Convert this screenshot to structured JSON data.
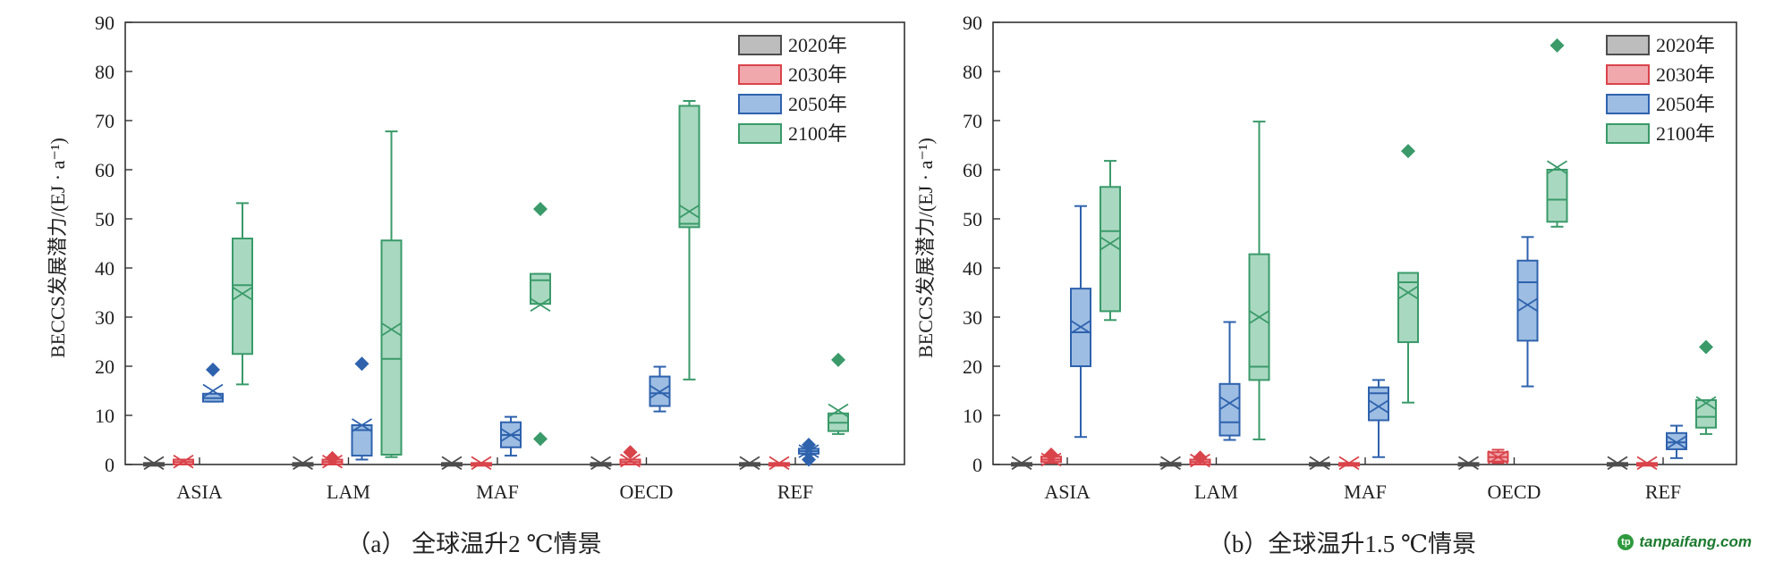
{
  "chart_data": [
    {
      "type": "box",
      "title": "（a） 全球温升2 ℃情景",
      "xlabel": "",
      "ylabel": "BECCS发展潜力/(EJ · a⁻¹)",
      "ylim": [
        0,
        90
      ],
      "yticks": [
        0,
        10,
        20,
        30,
        40,
        50,
        60,
        70,
        80,
        90
      ],
      "grid": false,
      "legend_position": "top-right",
      "categories": [
        "ASIA",
        "LAM",
        "MAF",
        "OECD",
        "REF"
      ],
      "series": [
        {
          "name": "2020年",
          "color": "#4d4d4d",
          "fill": "#bdbdbd",
          "boxes": [
            {
              "min": 0,
              "q1": 0,
              "median": 0,
              "q3": 0.3,
              "max": 0.3,
              "mean": 0.3,
              "outliers": []
            },
            {
              "min": 0,
              "q1": 0,
              "median": 0,
              "q3": 0.3,
              "max": 0.3,
              "mean": 0.3,
              "outliers": []
            },
            {
              "min": 0,
              "q1": 0,
              "median": 0,
              "q3": 0.3,
              "max": 0.3,
              "mean": 0.3,
              "outliers": []
            },
            {
              "min": 0,
              "q1": 0,
              "median": 0,
              "q3": 0.3,
              "max": 0.3,
              "mean": 0.3,
              "outliers": []
            },
            {
              "min": 0,
              "q1": 0,
              "median": 0,
              "q3": 0.3,
              "max": 0.3,
              "mean": 0.3,
              "outliers": []
            }
          ]
        },
        {
          "name": "2030年",
          "color": "#d9434a",
          "fill": "#f0a8ad",
          "boxes": [
            {
              "min": 0,
              "q1": 0,
              "median": 0.5,
              "q3": 1.0,
              "max": 1.0,
              "mean": 0.6,
              "outliers": []
            },
            {
              "min": 0,
              "q1": 0,
              "median": 0.5,
              "q3": 1.0,
              "max": 1.0,
              "mean": 0.6,
              "outliers": [
                1.3
              ]
            },
            {
              "min": 0,
              "q1": 0,
              "median": 0,
              "q3": 0.3,
              "max": 0.3,
              "mean": 0.3,
              "outliers": []
            },
            {
              "min": 0,
              "q1": 0,
              "median": 0.5,
              "q3": 1.0,
              "max": 1.0,
              "mean": 0.8,
              "outliers": [
                2.5
              ]
            },
            {
              "min": 0,
              "q1": 0,
              "median": 0,
              "q3": 0.3,
              "max": 0.3,
              "mean": 0.3,
              "outliers": []
            }
          ]
        },
        {
          "name": "2050年",
          "color": "#2e62ad",
          "fill": "#9dbde3",
          "boxes": [
            {
              "min": 12.8,
              "q1": 12.8,
              "median": 13.5,
              "q3": 14.4,
              "max": 14.4,
              "mean": 15.0,
              "outliers": [
                19.3
              ]
            },
            {
              "min": 1.0,
              "q1": 1.8,
              "median": 7.0,
              "q3": 8.0,
              "max": 8.0,
              "mean": 8.0,
              "outliers": [
                20.5
              ]
            },
            {
              "min": 1.8,
              "q1": 3.5,
              "median": 6.0,
              "q3": 8.6,
              "max": 9.7,
              "mean": 6.0,
              "outliers": []
            },
            {
              "min": 10.8,
              "q1": 11.9,
              "median": 14.5,
              "q3": 17.9,
              "max": 19.9,
              "mean": 14.8,
              "outliers": []
            },
            {
              "min": 2.0,
              "q1": 2.2,
              "median": 2.7,
              "q3": 3.2,
              "max": 3.3,
              "mean": 2.7,
              "outliers": [
                1.0,
                4.0
              ]
            }
          ]
        },
        {
          "name": "2100年",
          "color": "#3a9a6a",
          "fill": "#a9d8c0",
          "boxes": [
            {
              "min": 16.3,
              "q1": 22.5,
              "median": 36.5,
              "q3": 46.0,
              "max": 53.2,
              "mean": 34.8,
              "outliers": []
            },
            {
              "min": 1.5,
              "q1": 2.0,
              "median": 21.5,
              "q3": 45.6,
              "max": 67.8,
              "mean": 27.5,
              "outliers": []
            },
            {
              "min": 32.7,
              "q1": 32.7,
              "median": 37.5,
              "q3": 38.8,
              "max": 38.8,
              "mean": 32.5,
              "outliers": [
                52.0,
                5.2
              ]
            },
            {
              "min": 17.3,
              "q1": 48.3,
              "median": 49.0,
              "q3": 73.0,
              "max": 74.0,
              "mean": 51.5,
              "outliers": []
            },
            {
              "min": 6.2,
              "q1": 6.8,
              "median": 8.5,
              "q3": 10.4,
              "max": 10.4,
              "mean": 11.0,
              "outliers": [
                21.3
              ]
            }
          ]
        }
      ]
    },
    {
      "type": "box",
      "title": "（b）全球温升1.5 ℃情景",
      "xlabel": "",
      "ylabel": "BECCS发展潜力/(EJ · a⁻¹)",
      "ylim": [
        0,
        90
      ],
      "yticks": [
        0,
        10,
        20,
        30,
        40,
        50,
        60,
        70,
        80,
        90
      ],
      "grid": false,
      "legend_position": "top-right",
      "categories": [
        "ASIA",
        "LAM",
        "MAF",
        "OECD",
        "REF"
      ],
      "series": [
        {
          "name": "2020年",
          "color": "#4d4d4d",
          "fill": "#bdbdbd",
          "boxes": [
            {
              "min": 0,
              "q1": 0,
              "median": 0,
              "q3": 0.3,
              "max": 0.3,
              "mean": 0.3,
              "outliers": []
            },
            {
              "min": 0,
              "q1": 0,
              "median": 0,
              "q3": 0.3,
              "max": 0.3,
              "mean": 0.3,
              "outliers": []
            },
            {
              "min": 0,
              "q1": 0,
              "median": 0,
              "q3": 0.3,
              "max": 0.3,
              "mean": 0.3,
              "outliers": []
            },
            {
              "min": 0,
              "q1": 0,
              "median": 0,
              "q3": 0.3,
              "max": 0.3,
              "mean": 0.3,
              "outliers": []
            },
            {
              "min": 0,
              "q1": 0,
              "median": 0,
              "q3": 0.3,
              "max": 0.3,
              "mean": 0.3,
              "outliers": []
            }
          ]
        },
        {
          "name": "2030年",
          "color": "#d9434a",
          "fill": "#f0a8ad",
          "boxes": [
            {
              "min": 0.3,
              "q1": 0.5,
              "median": 1.0,
              "q3": 1.6,
              "max": 1.6,
              "mean": 1.0,
              "outliers": [
                2.0
              ]
            },
            {
              "min": 0,
              "q1": 0,
              "median": 0.5,
              "q3": 1.0,
              "max": 1.0,
              "mean": 0.8,
              "outliers": [
                1.4
              ]
            },
            {
              "min": 0,
              "q1": 0,
              "median": 0,
              "q3": 0.3,
              "max": 0.3,
              "mean": 0.3,
              "outliers": []
            },
            {
              "min": 0.3,
              "q1": 0.6,
              "median": 1.5,
              "q3": 2.5,
              "max": 3.0,
              "mean": 1.5,
              "outliers": []
            },
            {
              "min": 0,
              "q1": 0,
              "median": 0,
              "q3": 0.3,
              "max": 0.3,
              "mean": 0.3,
              "outliers": []
            }
          ]
        },
        {
          "name": "2050年",
          "color": "#2e62ad",
          "fill": "#9dbde3",
          "boxes": [
            {
              "min": 5.6,
              "q1": 20.0,
              "median": 26.9,
              "q3": 35.8,
              "max": 52.6,
              "mean": 28.0,
              "outliers": []
            },
            {
              "min": 5.0,
              "q1": 5.9,
              "median": 8.6,
              "q3": 16.4,
              "max": 29.0,
              "mean": 12.5,
              "outliers": []
            },
            {
              "min": 1.5,
              "q1": 9.0,
              "median": 14.5,
              "q3": 15.7,
              "max": 17.2,
              "mean": 11.8,
              "outliers": []
            },
            {
              "min": 15.9,
              "q1": 25.2,
              "median": 37.1,
              "q3": 41.5,
              "max": 46.3,
              "mean": 32.5,
              "outliers": []
            },
            {
              "min": 1.3,
              "q1": 3.1,
              "median": 4.5,
              "q3": 6.4,
              "max": 7.9,
              "mean": 4.5,
              "outliers": []
            }
          ]
        },
        {
          "name": "2100年",
          "color": "#3a9a6a",
          "fill": "#a9d8c0",
          "boxes": [
            {
              "min": 29.4,
              "q1": 31.2,
              "median": 47.5,
              "q3": 56.5,
              "max": 61.8,
              "mean": 45.0,
              "outliers": []
            },
            {
              "min": 5.1,
              "q1": 17.2,
              "median": 19.9,
              "q3": 42.8,
              "max": 69.8,
              "mean": 30.0,
              "outliers": []
            },
            {
              "min": 12.6,
              "q1": 24.9,
              "median": 37.1,
              "q3": 39.0,
              "max": 39.0,
              "mean": 35.0,
              "outliers": [
                63.8
              ]
            },
            {
              "min": 48.4,
              "q1": 49.4,
              "median": 53.9,
              "q3": 60.0,
              "max": 60.0,
              "mean": 60.5,
              "outliers": [
                85.3
              ]
            },
            {
              "min": 6.2,
              "q1": 7.5,
              "median": 9.7,
              "q3": 13.1,
              "max": 13.1,
              "mean": 12.5,
              "outliers": [
                23.9
              ]
            }
          ]
        }
      ]
    }
  ],
  "watermark": {
    "text": "tanpaifang.com",
    "logo_letter": "tp"
  }
}
